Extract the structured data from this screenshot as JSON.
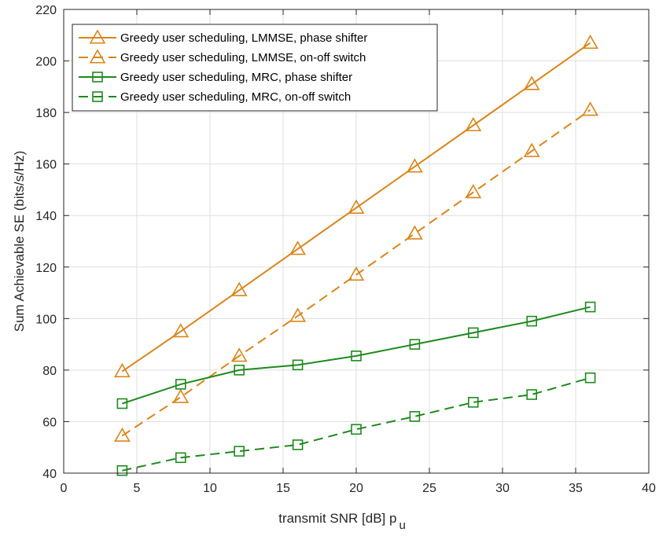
{
  "chart_data": {
    "type": "line",
    "title": "",
    "xlabel": "transmit SNR [dB] p",
    "xlabel_subscript": "u",
    "ylabel": "Sum Achievable SE (bits/s/Hz)",
    "xlim": [
      0,
      40
    ],
    "ylim": [
      40,
      220
    ],
    "xticks": [
      0,
      5,
      10,
      15,
      20,
      25,
      30,
      35,
      40
    ],
    "yticks": [
      40,
      60,
      80,
      100,
      120,
      140,
      160,
      180,
      200,
      220
    ],
    "grid": true,
    "legend_position": "top-left",
    "x": [
      4,
      8,
      12,
      16,
      20,
      24,
      28,
      32,
      36
    ],
    "series": [
      {
        "name": "Greedy user scheduling, LMMSE, phase shifter",
        "values": [
          79.5,
          95,
          111,
          127,
          143,
          159,
          175,
          191,
          207
        ],
        "color": "#D98518",
        "marker": "triangle",
        "linestyle": "solid"
      },
      {
        "name": "Greedy user scheduling, LMMSE, on-off switch",
        "values": [
          54.5,
          69.5,
          85.5,
          101,
          117,
          133,
          149,
          165,
          181
        ],
        "color": "#D98518",
        "marker": "triangle",
        "linestyle": "dashed"
      },
      {
        "name": "Greedy user scheduling, MRC, phase shifter",
        "values": [
          67,
          74.5,
          80,
          82,
          85.5,
          90,
          94.5,
          99,
          104.5
        ],
        "color": "#1E8A1E",
        "marker": "square",
        "linestyle": "solid"
      },
      {
        "name": "Greedy user scheduling, MRC, on-off switch",
        "values": [
          41,
          46,
          48.5,
          51,
          57,
          62,
          67.5,
          70.5,
          77
        ],
        "color": "#1E8A1E",
        "marker": "square",
        "linestyle": "dashed"
      }
    ]
  }
}
